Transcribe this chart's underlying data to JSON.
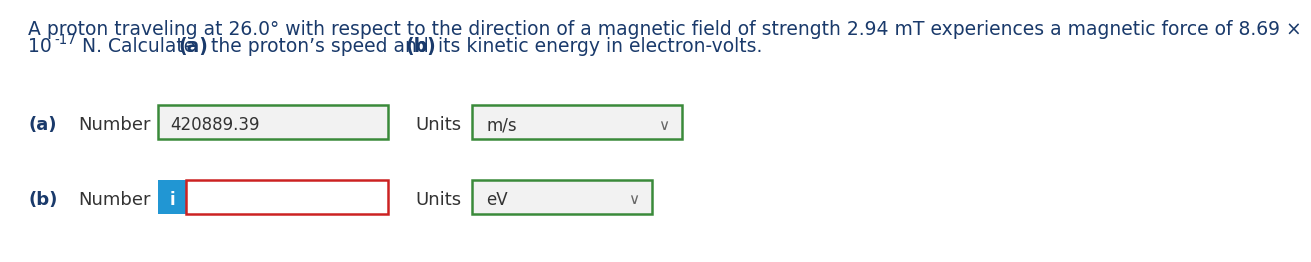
{
  "title_line1": "A proton traveling at 26.0° with respect to the direction of a magnetic field of strength 2.94 mT experiences a magnetic force of 8.69 ×",
  "title_line2_pre": "10",
  "title_line2_sup": "-17",
  "title_line2_post": " N. Calculate ",
  "title_line2_bold_a": "(a)",
  "title_line2_mid": " the proton’s speed and ",
  "title_line2_bold_b": "(b)",
  "title_line2_end": " its kinetic energy in electron-volts.",
  "title_color": "#1a3a6b",
  "background_color": "#ffffff",
  "row_a_label": "(a)",
  "row_a_field_label": "Number",
  "row_a_value": "420889.39",
  "row_a_units_label": "Units",
  "row_a_units_value": "m/s",
  "row_b_label": "(b)",
  "row_b_field_label": "Number",
  "row_b_units_label": "Units",
  "row_b_units_value": "eV",
  "input_box_border_color_a": "#3a8a3a",
  "input_box_fill_a": "#f2f2f2",
  "input_box_border_color_b_main": "#cc2222",
  "input_box_fill_b": "#ffffff",
  "units_box_border_color": "#3a8a3a",
  "units_box_fill": "#f2f2f2",
  "info_box_color": "#2196d3",
  "info_text_color": "#ffffff",
  "chevron_color": "#666666",
  "text_color": "#333333",
  "label_color": "#1a3a6b",
  "font_size_title": 13.5,
  "font_size_labels": 13,
  "font_size_value": 12
}
